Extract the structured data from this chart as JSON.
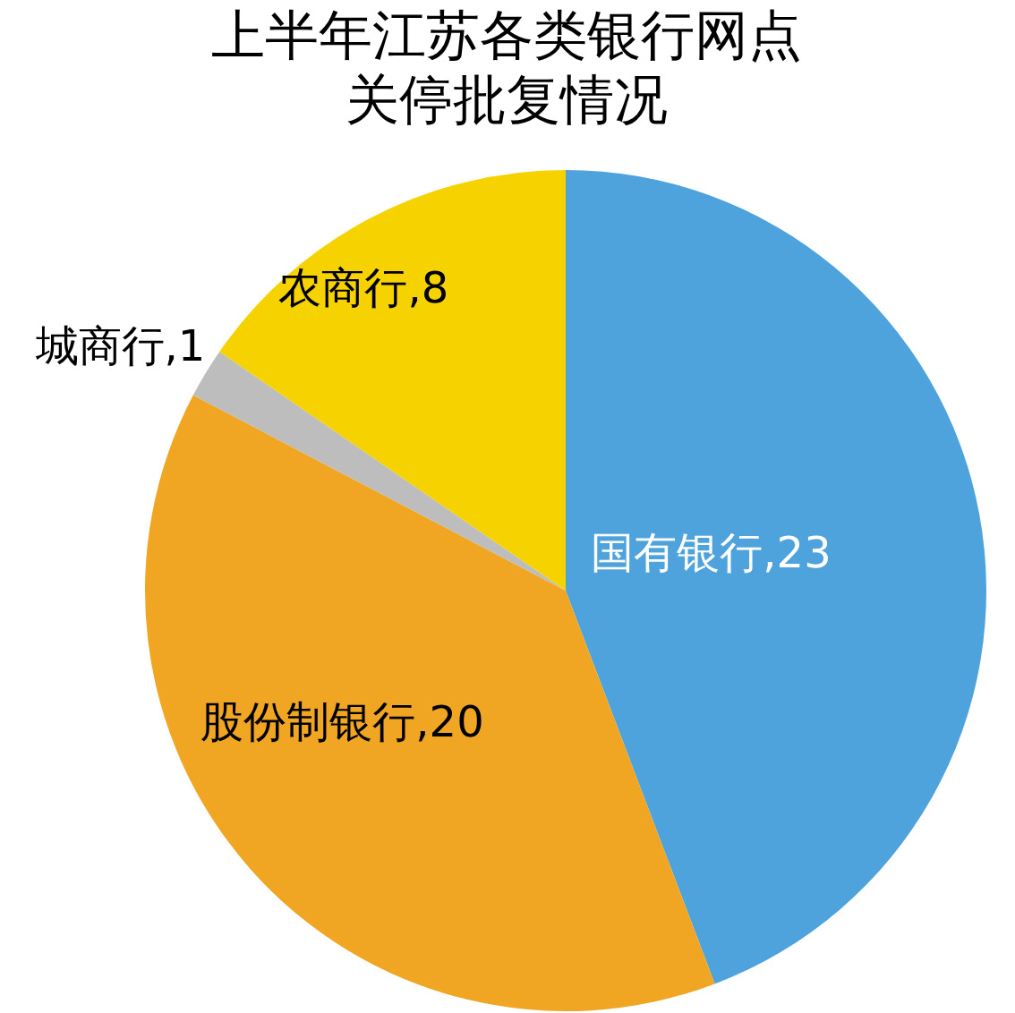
{
  "chart_data": {
    "type": "pie",
    "title": "上半年江苏各类银行网点关停批复情况",
    "categories": [
      "国有银行",
      "股份制银行",
      "城商行",
      "农商行"
    ],
    "values": [
      23,
      20,
      1,
      8
    ],
    "value_labels": [
      ",23",
      ",20",
      ",1",
      ",8"
    ],
    "colors": [
      "#4fa3dc",
      "#f0a523",
      "#bdbdbd",
      "#f5d200"
    ]
  }
}
